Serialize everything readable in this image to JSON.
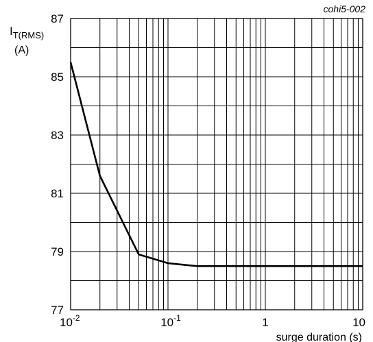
{
  "chart_data": {
    "type": "line",
    "figure_code": "cohi5-002",
    "ylabel_main": "I",
    "ylabel_sub": "T(RMS)",
    "ylabel_unit": "(A)",
    "xlabel": "surge duration (s)",
    "x_scale": "log",
    "xlim": [
      0.01,
      10
    ],
    "ylim": [
      77,
      87
    ],
    "x_ticks": [
      {
        "base": "10",
        "exp": "-2",
        "value": 0.01
      },
      {
        "base": "10",
        "exp": "-1",
        "value": 0.1
      },
      {
        "base": "1",
        "exp": "",
        "value": 1
      },
      {
        "base": "10",
        "exp": "",
        "value": 10
      }
    ],
    "y_ticks": [
      "77",
      "79",
      "81",
      "83",
      "85",
      "87"
    ],
    "grid": true,
    "series": [
      {
        "x": [
          0.01,
          0.02,
          0.05,
          0.1,
          0.2,
          0.5,
          1,
          2,
          5,
          10
        ],
        "y": [
          85.5,
          81.6,
          78.9,
          78.6,
          78.5,
          78.5,
          78.5,
          78.5,
          78.5,
          78.5
        ]
      }
    ]
  }
}
